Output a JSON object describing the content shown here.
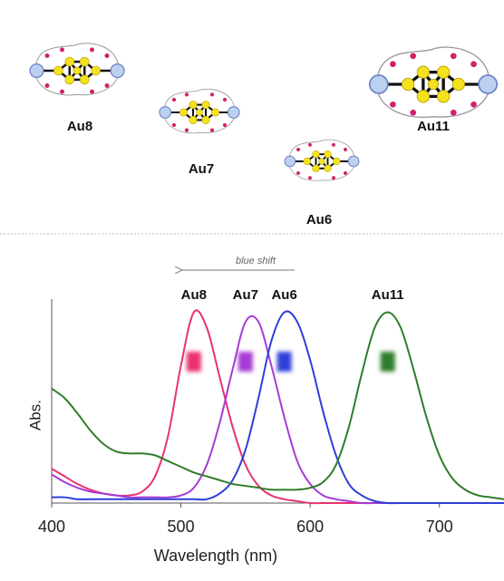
{
  "structures": [
    {
      "label": "Au8"
    },
    {
      "label": "Au7"
    },
    {
      "label": "Au6"
    },
    {
      "label": "Au11"
    }
  ],
  "chart_data": {
    "type": "line",
    "annotation": "blue shift",
    "xlabel": "Wavelength (nm)",
    "ylabel": "Abs.",
    "x": [
      400,
      410,
      420,
      430,
      440,
      450,
      460,
      470,
      480,
      490,
      500,
      510,
      520,
      530,
      540,
      550,
      560,
      570,
      580,
      590,
      600,
      610,
      620,
      630,
      640,
      650,
      660,
      670,
      680,
      690,
      700,
      710,
      720,
      730,
      740,
      750
    ],
    "xlim": [
      400,
      750
    ],
    "xticks": [
      400,
      500,
      600,
      700
    ],
    "ylim": [
      0,
      1.05
    ],
    "series": [
      {
        "name": "Au8",
        "color": "#e8336e",
        "values": [
          0.18,
          0.14,
          0.1,
          0.07,
          0.05,
          0.04,
          0.04,
          0.06,
          0.14,
          0.35,
          0.72,
          1.0,
          0.92,
          0.66,
          0.4,
          0.2,
          0.09,
          0.04,
          0.02,
          0.01,
          0,
          0,
          0,
          0,
          0,
          0,
          0,
          0,
          0,
          0,
          0,
          0,
          0,
          0,
          0,
          0
        ]
      },
      {
        "name": "Au7",
        "color": "#a63bd6",
        "values": [
          0.15,
          0.11,
          0.08,
          0.06,
          0.05,
          0.04,
          0.03,
          0.03,
          0.03,
          0.03,
          0.04,
          0.08,
          0.2,
          0.42,
          0.7,
          0.95,
          0.95,
          0.72,
          0.45,
          0.22,
          0.1,
          0.04,
          0.02,
          0.01,
          0,
          0,
          0,
          0,
          0,
          0,
          0,
          0,
          0,
          0,
          0,
          0
        ]
      },
      {
        "name": "Au6",
        "color": "#2e3fd8",
        "values": [
          0.03,
          0.03,
          0.02,
          0.02,
          0.02,
          0.02,
          0.02,
          0.02,
          0.02,
          0.02,
          0.02,
          0.02,
          0.02,
          0.05,
          0.12,
          0.28,
          0.55,
          0.85,
          1.0,
          0.95,
          0.75,
          0.48,
          0.25,
          0.1,
          0.04,
          0.01,
          0,
          0,
          0,
          0,
          0,
          0,
          0,
          0,
          0,
          0
        ]
      },
      {
        "name": "Au11",
        "color": "#2f7d2a",
        "values": [
          0.6,
          0.55,
          0.47,
          0.38,
          0.31,
          0.27,
          0.26,
          0.26,
          0.25,
          0.22,
          0.19,
          0.16,
          0.14,
          0.12,
          0.1,
          0.09,
          0.08,
          0.07,
          0.07,
          0.07,
          0.08,
          0.11,
          0.2,
          0.4,
          0.68,
          0.92,
          1.0,
          0.92,
          0.7,
          0.45,
          0.25,
          0.13,
          0.07,
          0.04,
          0.03,
          0.02
        ]
      }
    ]
  }
}
